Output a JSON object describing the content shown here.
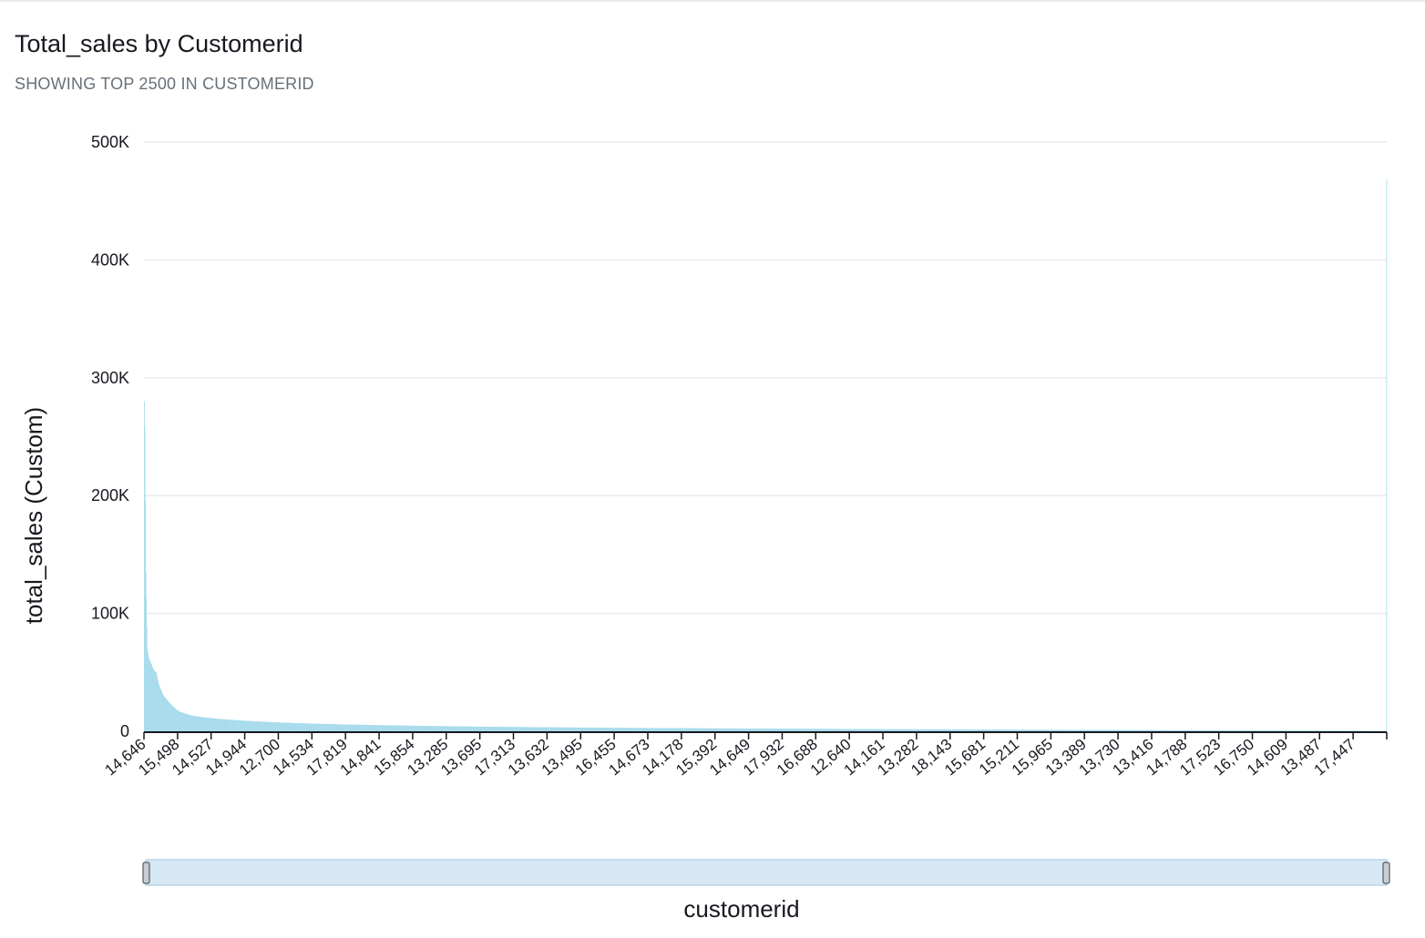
{
  "header": {
    "title": "Total_sales by Customerid",
    "subtitle": "SHOWING TOP 2500 IN CUSTOMERID"
  },
  "colors": {
    "bar": "#a9dcec",
    "grid": "#e9ebed",
    "axis": "#16191f",
    "scrollbar_fill": "#d6e8f4",
    "scrollbar_border": "#b8d6ea",
    "handle": "#c9ced3"
  },
  "chart_data": {
    "type": "bar",
    "title": "Total_sales by Customerid",
    "subtitle": "SHOWING TOP 2500 IN CUSTOMERID",
    "xlabel": "customerid",
    "ylabel": "total_sales (Custom)",
    "ylim": [
      0,
      500000
    ],
    "yticks": [
      {
        "value": 0,
        "label": "0"
      },
      {
        "value": 100000,
        "label": "100K"
      },
      {
        "value": 200000,
        "label": "200K"
      },
      {
        "value": 300000,
        "label": "300K"
      },
      {
        "value": 400000,
        "label": "400K"
      },
      {
        "value": 500000,
        "label": "500K"
      }
    ],
    "grid": true,
    "legend": "none",
    "category_count": 2500,
    "x_tick_labels": [
      "14,646",
      "15,498",
      "14,527",
      "14,944",
      "12,700",
      "14,534",
      "17,819",
      "14,841",
      "15,854",
      "13,285",
      "13,695",
      "17,313",
      "13,632",
      "13,495",
      "16,455",
      "14,673",
      "14,178",
      "15,392",
      "14,649",
      "17,932",
      "16,688",
      "12,640",
      "14,161",
      "13,282",
      "18,143",
      "15,681",
      "15,211",
      "15,965",
      "13,389",
      "13,730",
      "13,416",
      "14,788",
      "17,523",
      "16,750",
      "14,609",
      "13,487",
      "17,447"
    ],
    "value_profile": [
      {
        "rank": 1,
        "value": 280000
      },
      {
        "rank": 2,
        "value": 259000
      },
      {
        "rank": 3,
        "value": 196000
      },
      {
        "rank": 4,
        "value": 135000
      },
      {
        "rank": 5,
        "value": 113000
      },
      {
        "rank": 7,
        "value": 70000
      },
      {
        "rank": 10,
        "value": 62000
      },
      {
        "rank": 15,
        "value": 57000
      },
      {
        "rank": 20,
        "value": 52000
      },
      {
        "rank": 25,
        "value": 50000
      },
      {
        "rank": 30,
        "value": 40000
      },
      {
        "rank": 40,
        "value": 30000
      },
      {
        "rank": 50,
        "value": 25000
      },
      {
        "rank": 70,
        "value": 17000
      },
      {
        "rank": 100,
        "value": 13000
      },
      {
        "rank": 150,
        "value": 10500
      },
      {
        "rank": 200,
        "value": 9000
      },
      {
        "rank": 300,
        "value": 7000
      },
      {
        "rank": 400,
        "value": 5800
      },
      {
        "rank": 500,
        "value": 5000
      },
      {
        "rank": 700,
        "value": 3800
      },
      {
        "rank": 1000,
        "value": 2800
      },
      {
        "rank": 1500,
        "value": 1800
      },
      {
        "rank": 2000,
        "value": 1000
      },
      {
        "rank": 2499,
        "value": 400
      }
    ],
    "last_bar_value": 468000
  }
}
